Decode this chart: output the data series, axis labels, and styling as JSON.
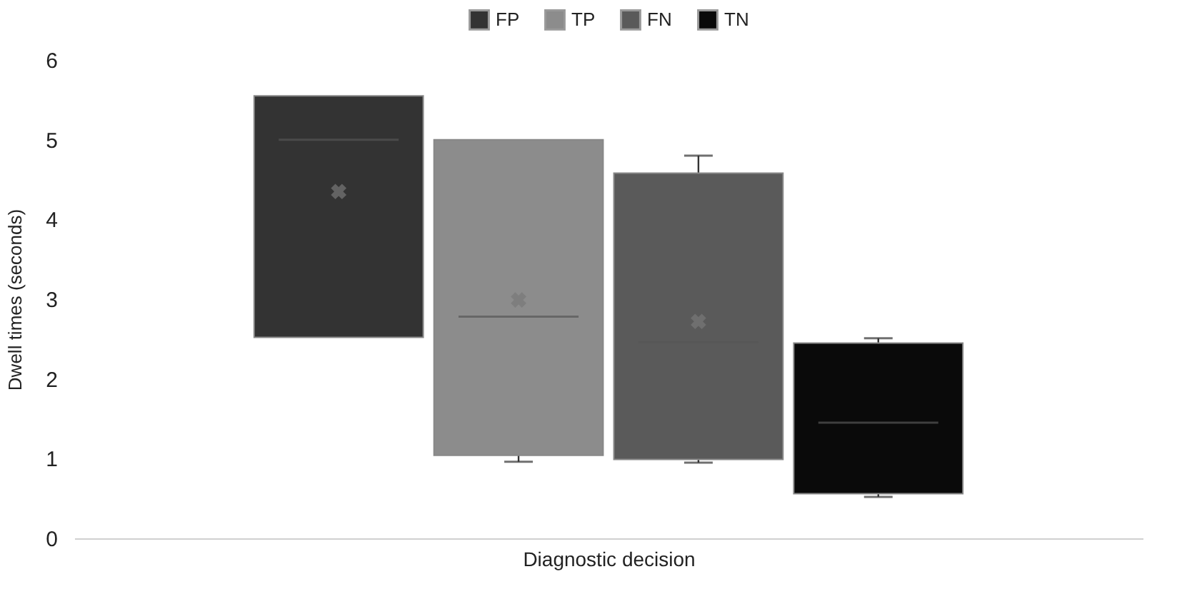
{
  "chart_data": {
    "type": "box",
    "xlabel": "Diagnostic decision",
    "ylabel": "Dwell times (seconds)",
    "categories": [
      null
    ],
    "series": [
      {
        "name": "FP",
        "color": "#333333",
        "boxes": [
          {
            "low": 2.52,
            "q1": 2.52,
            "median": 5.0,
            "q3": 5.55,
            "high": 5.55,
            "mean": 4.35
          }
        ]
      },
      {
        "name": "TP",
        "color": "#8c8c8c",
        "boxes": [
          {
            "low": 0.96,
            "q1": 1.04,
            "median": 2.78,
            "q3": 5.0,
            "high": 5.0,
            "mean": 2.99
          }
        ]
      },
      {
        "name": "FN",
        "color": "#5a5a5a",
        "boxes": [
          {
            "low": 0.95,
            "q1": 0.99,
            "median": 2.46,
            "q3": 4.58,
            "high": 4.8,
            "mean": 2.72
          }
        ]
      },
      {
        "name": "TN",
        "color": "#0a0a0a",
        "boxes": [
          {
            "low": 0.52,
            "q1": 0.56,
            "median": 1.45,
            "q3": 2.45,
            "high": 2.51
          }
        ]
      }
    ],
    "ylim": [
      0,
      6
    ],
    "yticks": [
      0,
      1,
      2,
      3,
      4,
      5,
      6
    ],
    "legend": "top",
    "tick_labels": "y"
  }
}
